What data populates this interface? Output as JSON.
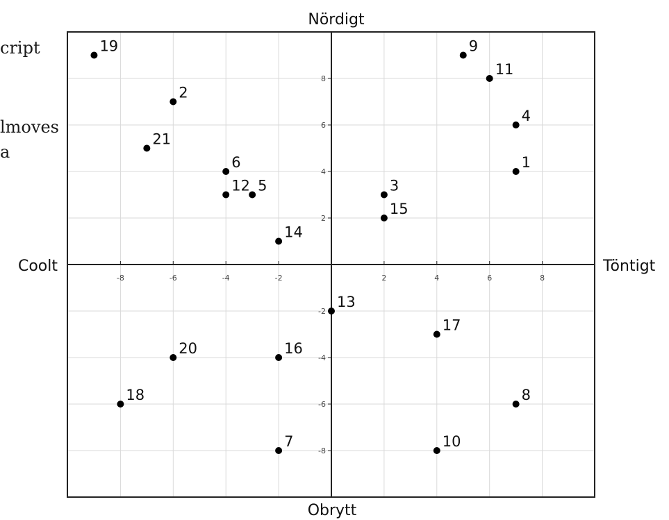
{
  "clipped_fragments": [
    "cript",
    "lmoves",
    "a"
  ],
  "chart_data": {
    "type": "scatter",
    "title": "",
    "axis_labels": {
      "top": "Nördigt",
      "bottom": "Obrytt",
      "left": "Coolt",
      "right": "Töntigt"
    },
    "xlim": [
      -10,
      10
    ],
    "ylim": [
      -10,
      10
    ],
    "x_ticks": [
      -8,
      -6,
      -4,
      -2,
      2,
      4,
      6,
      8
    ],
    "y_ticks": [
      8,
      6,
      4,
      2,
      -2,
      -4,
      -6,
      -8
    ],
    "grid": true,
    "points": [
      {
        "label": "1",
        "x": 7,
        "y": 4
      },
      {
        "label": "2",
        "x": -6,
        "y": 7
      },
      {
        "label": "3",
        "x": 2,
        "y": 3
      },
      {
        "label": "4",
        "x": 7,
        "y": 6
      },
      {
        "label": "5",
        "x": -3,
        "y": 3
      },
      {
        "label": "6",
        "x": -4,
        "y": 4
      },
      {
        "label": "7",
        "x": -2,
        "y": -8
      },
      {
        "label": "8",
        "x": 7,
        "y": -6
      },
      {
        "label": "9",
        "x": 5,
        "y": 9
      },
      {
        "label": "10",
        "x": 4,
        "y": -8
      },
      {
        "label": "11",
        "x": 6,
        "y": 8
      },
      {
        "label": "12",
        "x": -4,
        "y": 3
      },
      {
        "label": "13",
        "x": 0,
        "y": -2
      },
      {
        "label": "14",
        "x": -2,
        "y": 1
      },
      {
        "label": "15",
        "x": 2,
        "y": 2
      },
      {
        "label": "16",
        "x": -2,
        "y": -4
      },
      {
        "label": "17",
        "x": 4,
        "y": -3
      },
      {
        "label": "18",
        "x": -8,
        "y": -6
      },
      {
        "label": "19",
        "x": -9,
        "y": 9
      },
      {
        "label": "20",
        "x": -6,
        "y": -4
      },
      {
        "label": "21",
        "x": -7,
        "y": 5
      }
    ]
  }
}
